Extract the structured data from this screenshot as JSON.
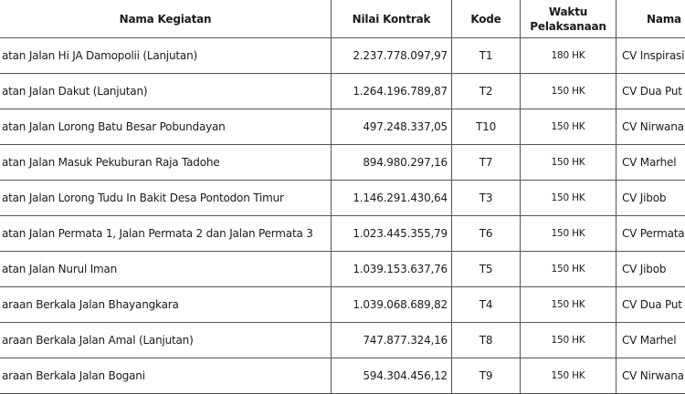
{
  "table": {
    "headers": [
      "Nama Kegiatan",
      "Nilai Kontrak",
      "Kode",
      "Waktu Pelaksanaan",
      "Nama P"
    ],
    "rows": [
      {
        "nama": "atan Jalan Hi JA Damopolii (Lanjutan)",
        "nilai": "2.237.778.097,97",
        "kode": "T1",
        "waktu": "180 HK",
        "penyedia": "CV Inspirasi"
      },
      {
        "nama": "atan Jalan Dakut (Lanjutan)",
        "nilai": "1.264.196.789,87",
        "kode": "T2",
        "waktu": "150 HK",
        "penyedia": "CV Dua Put"
      },
      {
        "nama": "atan Jalan Lorong Batu Besar Pobundayan",
        "nilai": "497.248.337,05",
        "kode": "T10",
        "waktu": "150 HK",
        "penyedia": "CV Nirwana"
      },
      {
        "nama": "atan Jalan Masuk Pekuburan Raja Tadohe",
        "nilai": "894.980.297,16",
        "kode": "T7",
        "waktu": "150 HK",
        "penyedia": "CV Marhel"
      },
      {
        "nama": "atan Jalan Lorong Tudu In Bakit Desa Pontodon Timur",
        "nilai": "1.146.291.430,64",
        "kode": "T3",
        "waktu": "150 HK",
        "penyedia": "CV Jibob"
      },
      {
        "nama": "atan Jalan Permata 1, Jalan Permata 2 dan Jalan Permata 3",
        "nilai": "1.023.445.355,79",
        "kode": "T6",
        "waktu": "150 HK",
        "penyedia": "CV Permata"
      },
      {
        "nama": "atan Jalan Nurul Iman",
        "nilai": "1.039.153.637,76",
        "kode": "T5",
        "waktu": "150 HK",
        "penyedia": "CV Jibob"
      },
      {
        "nama": "araan Berkala Jalan Bhayangkara",
        "nilai": "1.039.068.689,82",
        "kode": "T4",
        "waktu": "150 HK",
        "penyedia": "CV Dua Put"
      },
      {
        "nama": "araan Berkala Jalan Amal (Lanjutan)",
        "nilai": "747.877.324,16",
        "kode": "T8",
        "waktu": "150 HK",
        "penyedia": "CV Marhel"
      },
      {
        "nama": "araan Berkala Jalan Bogani",
        "nilai": "594.304.456,12",
        "kode": "T9",
        "waktu": "150 HK",
        "penyedia": "CV Nirwana"
      }
    ]
  }
}
